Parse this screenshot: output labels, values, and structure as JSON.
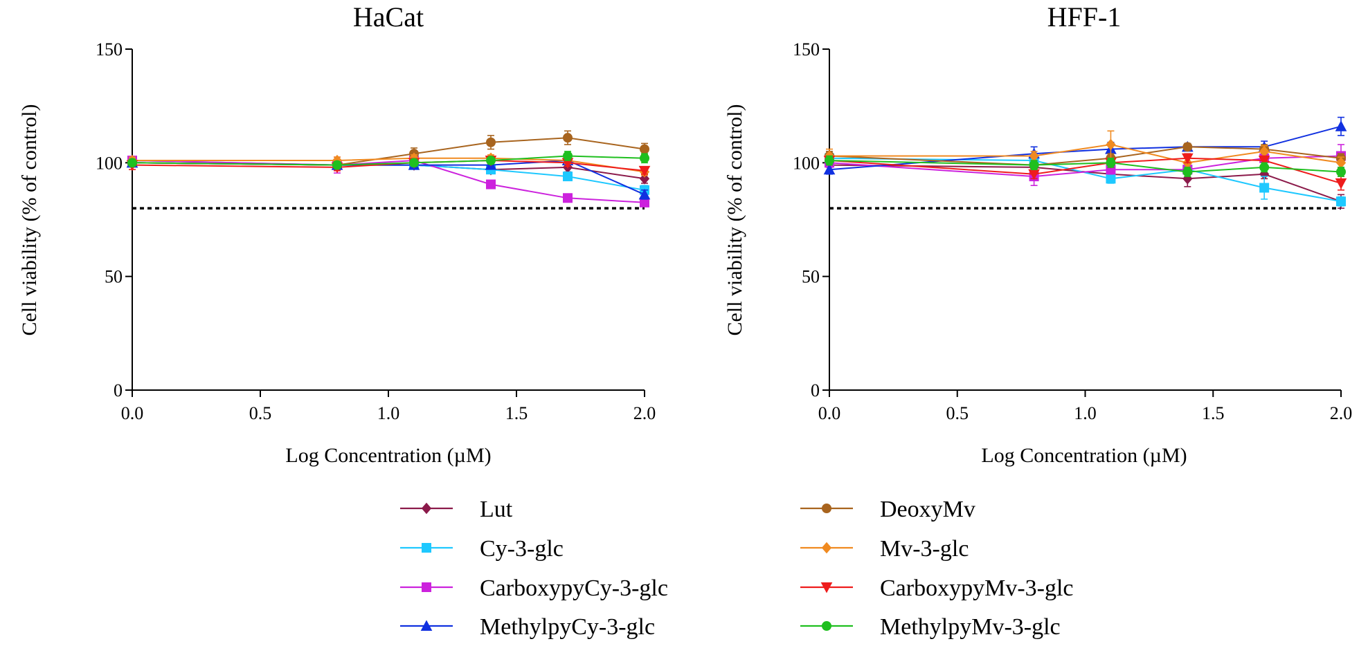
{
  "chart_data": [
    {
      "type": "line",
      "title": "HaCat",
      "xlabel": "Log Concentration (µM)",
      "ylabel": "Cell viability (% of control)",
      "xlim": [
        0,
        2
      ],
      "ylim": [
        0,
        150
      ],
      "xticks": [
        "0.0",
        "0.5",
        "1.0",
        "1.5",
        "2.0"
      ],
      "yticks": [
        "0",
        "50",
        "100",
        "150"
      ],
      "threshold": 80,
      "x": [
        0,
        0.8,
        1.1,
        1.4,
        1.7,
        2.0
      ],
      "series": [
        {
          "name": "Lut",
          "color": "#8b1a4a",
          "marker": "diamond",
          "values": [
            100,
            99,
            99,
            97,
            98,
            93
          ],
          "err": [
            1.5,
            2,
            1.5,
            1.5,
            2,
            2
          ]
        },
        {
          "name": "Cy-3-glc",
          "color": "#1ec8ff",
          "marker": "square",
          "values": [
            101,
            99,
            99,
            97,
            94,
            88
          ],
          "err": [
            1.5,
            1.5,
            1.5,
            1.5,
            1.5,
            2
          ]
        },
        {
          "name": "CarboxypyCy-3-glc",
          "color": "#cc22dd",
          "marker": "square",
          "values": [
            101,
            99,
            101,
            90.5,
            84.5,
            82.5
          ],
          "err": [
            1.5,
            3.5,
            1.5,
            1.5,
            1,
            1.5
          ]
        },
        {
          "name": "MethylpyCy-3-glc",
          "color": "#1030e0",
          "marker": "triangle-up",
          "values": [
            100,
            99,
            99,
            99,
            101,
            86
          ],
          "err": [
            1.5,
            1.5,
            1.5,
            1.5,
            1.5,
            2
          ]
        },
        {
          "name": "DeoxyMv",
          "color": "#a8641e",
          "marker": "circle",
          "values": [
            100,
            99,
            104,
            109,
            111,
            106
          ],
          "err": [
            1.5,
            1.5,
            2.5,
            3,
            3,
            2.5
          ]
        },
        {
          "name": "Mv-3-glc",
          "color": "#f08a20",
          "marker": "diamond",
          "values": [
            101,
            101,
            102,
            102,
            101,
            96
          ],
          "err": [
            1.5,
            1.5,
            1.5,
            1.5,
            1.5,
            1.5
          ]
        },
        {
          "name": "CarboxypyMv-3-glc",
          "color": "#ee1c1c",
          "marker": "triangle-down",
          "values": [
            99,
            98,
            100,
            101,
            100,
            96.5
          ],
          "err": [
            2,
            1.5,
            1.5,
            1.5,
            1.5,
            1.5
          ]
        },
        {
          "name": "MethylpyMv-3-glc",
          "color": "#1fbf1f",
          "marker": "circle",
          "values": [
            100,
            99,
            100,
            101,
            103,
            102
          ],
          "err": [
            1.5,
            1.5,
            1.5,
            1.5,
            2,
            2
          ]
        }
      ]
    },
    {
      "type": "line",
      "title": "HFF-1",
      "xlabel": "Log Concentration (µM)",
      "ylabel": "Cell viability (% of control)",
      "xlim": [
        0,
        2
      ],
      "ylim": [
        0,
        150
      ],
      "xticks": [
        "0.0",
        "0.5",
        "1.0",
        "1.5",
        "2.0"
      ],
      "yticks": [
        "0",
        "50",
        "100",
        "150"
      ],
      "threshold": 80,
      "x": [
        0,
        0.8,
        1.1,
        1.4,
        1.7,
        2.0
      ],
      "series": [
        {
          "name": "Lut",
          "color": "#8b1a4a",
          "marker": "diamond",
          "values": [
            99,
            98,
            95,
            93,
            95,
            83
          ],
          "err": [
            2.5,
            2,
            2,
            3.5,
            2,
            3
          ]
        },
        {
          "name": "Cy-3-glc",
          "color": "#1ec8ff",
          "marker": "square",
          "values": [
            102,
            101,
            93,
            97,
            89,
            83
          ],
          "err": [
            3,
            2,
            2,
            2,
            5,
            2
          ]
        },
        {
          "name": "CarboxypyCy-3-glc",
          "color": "#cc22dd",
          "marker": "square",
          "values": [
            100,
            94,
            97,
            97,
            102,
            103
          ],
          "err": [
            2,
            4,
            2,
            2,
            3,
            5
          ]
        },
        {
          "name": "MethylpyCy-3-glc",
          "color": "#1030e0",
          "marker": "triangle-up",
          "values": [
            97,
            104,
            106,
            107,
            107,
            116
          ],
          "err": [
            2,
            3,
            3,
            1.5,
            2.5,
            4
          ]
        },
        {
          "name": "DeoxyMv",
          "color": "#a8641e",
          "marker": "circle",
          "values": [
            103,
            99,
            102,
            107,
            106,
            102
          ],
          "err": [
            2,
            2,
            2,
            1.5,
            2,
            2
          ]
        },
        {
          "name": "Mv-3-glc",
          "color": "#f08a20",
          "marker": "diamond",
          "values": [
            103,
            103,
            108,
            100,
            105,
            100
          ],
          "err": [
            3,
            2,
            6,
            2,
            2.5,
            2.5
          ]
        },
        {
          "name": "CarboxypyMv-3-glc",
          "color": "#ee1c1c",
          "marker": "triangle-down",
          "values": [
            101,
            95,
            100,
            102,
            101,
            91
          ],
          "err": [
            2,
            2,
            2,
            2,
            2,
            3
          ]
        },
        {
          "name": "MethylpyMv-3-glc",
          "color": "#1fbf1f",
          "marker": "circle",
          "values": [
            101,
            99,
            100,
            96,
            98,
            96
          ],
          "err": [
            2,
            2,
            2,
            2,
            2,
            2
          ]
        }
      ]
    }
  ]
}
